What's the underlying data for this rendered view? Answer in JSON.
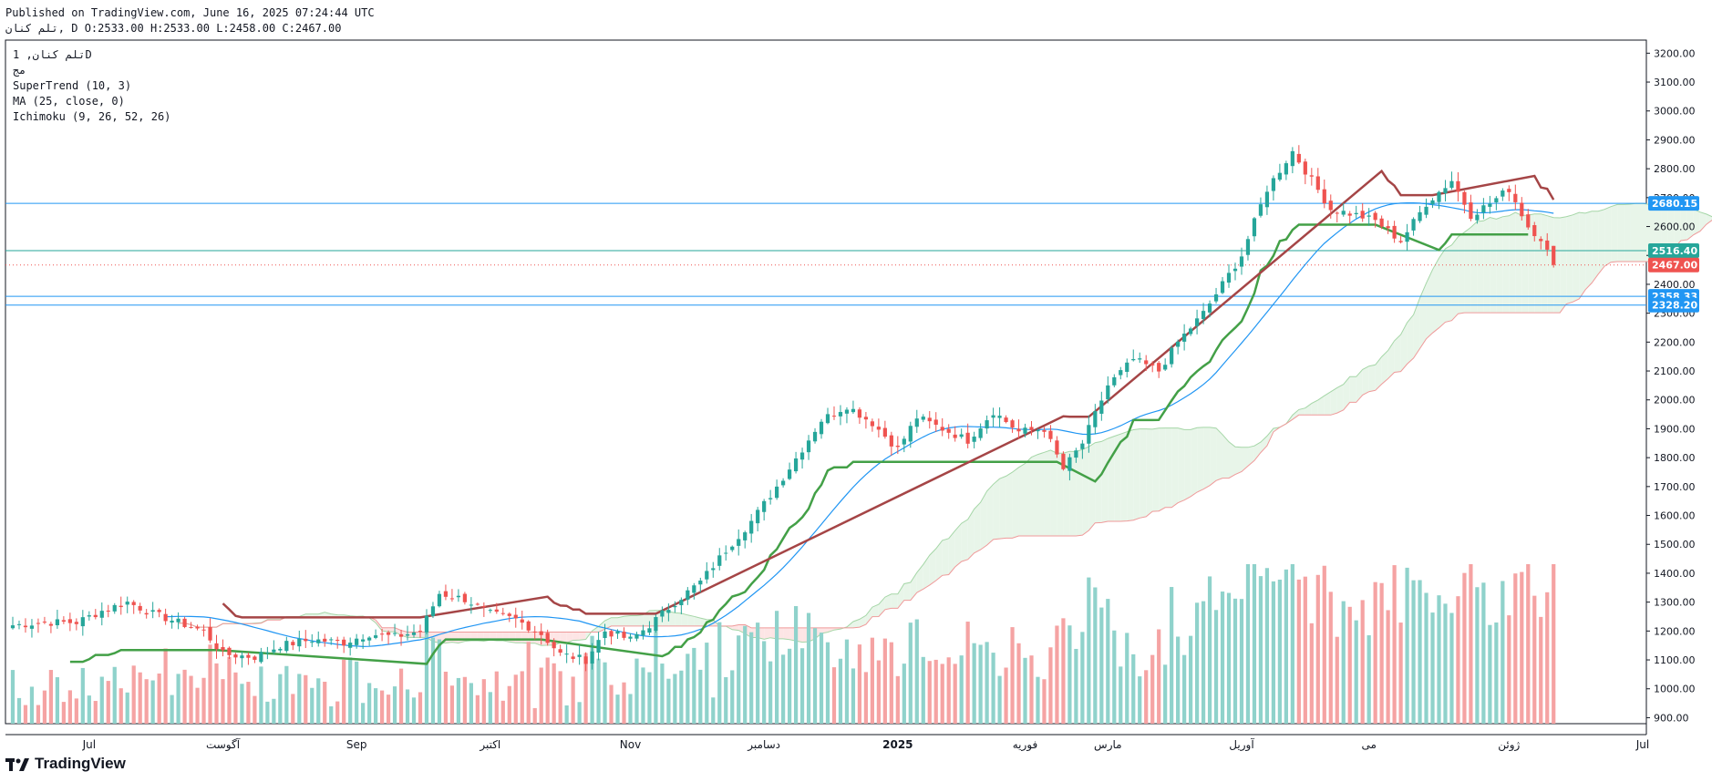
{
  "header": {
    "published": "Published on TradingView.com, June 16, 2025 07:24:44 UTC",
    "ohlc": "تلم کنان, D O:2533.00 H:2533.00 L:2458.00 C:2467.00"
  },
  "legend": {
    "symbol": "تلم کنان, 1D",
    "exchange": "مج",
    "indicators": [
      "SuperTrend (10, 3)",
      "MA (25, close, 0)",
      "Ichimoku (9, 26, 52, 26)"
    ]
  },
  "footer": {
    "brand": "TradingView"
  },
  "colors": {
    "up": "#26a69a",
    "down": "#ef5350",
    "ma": "#2196f3",
    "st_up": "#43a047",
    "st_down": "#a54546",
    "kumo_bull": "#e8f5e9",
    "kumo_bear": "#fde5e5",
    "hline": "#2196f3",
    "last_line": "#ef5350",
    "vol_up": "#8fd2cb",
    "vol_down": "#f5a3a3"
  },
  "chart_data": {
    "type": "candlestick",
    "title": "تلم کنان, 1D",
    "ylim": [
      880,
      3240
    ],
    "y_ticks": [
      900,
      1000,
      1100,
      1200,
      1300,
      1400,
      1500,
      1600,
      1700,
      1800,
      1900,
      2000,
      2100,
      2200,
      2300,
      2400,
      2500,
      2600,
      2700,
      2800,
      2900,
      3000,
      3100,
      3200
    ],
    "x_labels": [
      {
        "label": "Jul",
        "idx": 12
      },
      {
        "label": "آگوست",
        "idx": 33
      },
      {
        "label": "Sep",
        "idx": 54
      },
      {
        "label": "اکتبر",
        "idx": 75
      },
      {
        "label": "Nov",
        "idx": 97
      },
      {
        "label": "دسامبر",
        "idx": 118
      },
      {
        "label": "2025",
        "idx": 139
      },
      {
        "label": "فوریه",
        "idx": 159
      },
      {
        "label": "مارس",
        "idx": 172
      },
      {
        "label": "آوریل",
        "idx": 193
      },
      {
        "label": "می",
        "idx": 213
      },
      {
        "label": "ژوئن",
        "idx": 235
      },
      {
        "label": "Jul",
        "idx": 256
      }
    ],
    "x_range": [
      0,
      256
    ],
    "horizontal_lines": [
      {
        "value": 2680.15,
        "label": "2680.15",
        "color": "#2196f3"
      },
      {
        "value": 2516.4,
        "label": "2516.40",
        "color": "#26a69a"
      },
      {
        "value": 2358.33,
        "label": "2358.33",
        "color": "#2196f3"
      },
      {
        "value": 2328.2,
        "label": "2328.20",
        "color": "#2196f3"
      }
    ],
    "last_price": {
      "value": 2467.0,
      "label": "2467.00"
    },
    "close_anchors": [
      [
        0,
        1220
      ],
      [
        5,
        1230
      ],
      [
        10,
        1230
      ],
      [
        14,
        1270
      ],
      [
        18,
        1300
      ],
      [
        22,
        1260
      ],
      [
        26,
        1230
      ],
      [
        30,
        1200
      ],
      [
        33,
        1120
      ],
      [
        38,
        1110
      ],
      [
        42,
        1150
      ],
      [
        47,
        1170
      ],
      [
        52,
        1160
      ],
      [
        56,
        1190
      ],
      [
        60,
        1180
      ],
      [
        64,
        1200
      ],
      [
        67,
        1330
      ],
      [
        71,
        1310
      ],
      [
        75,
        1260
      ],
      [
        79,
        1240
      ],
      [
        83,
        1190
      ],
      [
        86,
        1120
      ],
      [
        90,
        1100
      ],
      [
        93,
        1200
      ],
      [
        97,
        1170
      ],
      [
        100,
        1220
      ],
      [
        104,
        1300
      ],
      [
        108,
        1370
      ],
      [
        112,
        1480
      ],
      [
        116,
        1580
      ],
      [
        120,
        1700
      ],
      [
        124,
        1830
      ],
      [
        127,
        1930
      ],
      [
        131,
        1980
      ],
      [
        135,
        1920
      ],
      [
        139,
        1830
      ],
      [
        142,
        1940
      ],
      [
        146,
        1900
      ],
      [
        150,
        1860
      ],
      [
        154,
        1960
      ],
      [
        158,
        1890
      ],
      [
        162,
        1900
      ],
      [
        165,
        1760
      ],
      [
        168,
        1850
      ],
      [
        172,
        2050
      ],
      [
        176,
        2140
      ],
      [
        180,
        2100
      ],
      [
        183,
        2200
      ],
      [
        187,
        2300
      ],
      [
        190,
        2400
      ],
      [
        193,
        2500
      ],
      [
        197,
        2730
      ],
      [
        201,
        2860
      ],
      [
        204,
        2760
      ],
      [
        207,
        2660
      ],
      [
        211,
        2640
      ],
      [
        214,
        2620
      ],
      [
        218,
        2550
      ],
      [
        222,
        2680
      ],
      [
        226,
        2760
      ],
      [
        229,
        2640
      ],
      [
        232,
        2680
      ],
      [
        235,
        2730
      ],
      [
        238,
        2600
      ],
      [
        240,
        2560
      ],
      [
        242,
        2467
      ]
    ],
    "ma_period": 25,
    "supertrend": {
      "period": 10,
      "multiplier": 3
    },
    "ichimoku": {
      "tenkan": 9,
      "kijun": 26,
      "senkou_b": 52,
      "displacement": 26
    }
  }
}
